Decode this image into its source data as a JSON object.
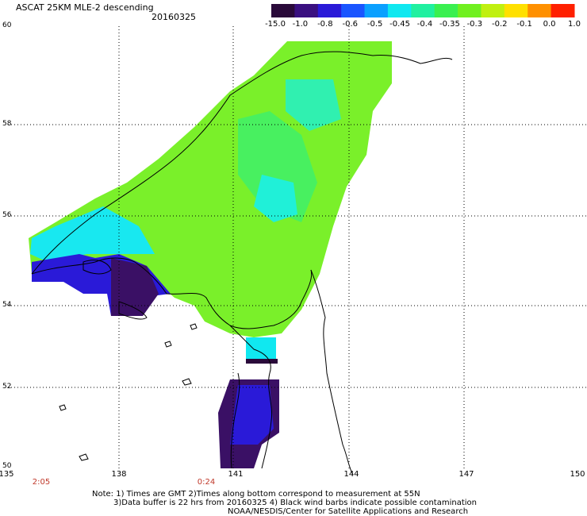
{
  "header": {
    "title": "ASCAT 25KM MLE-2 descending",
    "date": "20160325"
  },
  "colorbar": {
    "labels": [
      "-15.0",
      "-1.0",
      "-0.8",
      "-0.6",
      "-0.5",
      "-0.45",
      "-0.4",
      "-0.35",
      "-0.3",
      "-0.2",
      "-0.1",
      "0.0",
      "1.0"
    ],
    "colors": [
      "#2a0a3a",
      "#3a1080",
      "#2a1ad8",
      "#1a55ff",
      "#0aa0ff",
      "#10e8f0",
      "#20f0a0",
      "#3af050",
      "#70f020",
      "#c0f010",
      "#ffe000",
      "#ff9000",
      "#ff2000"
    ]
  },
  "map": {
    "lat_labels": [
      "60",
      "58",
      "56",
      "54",
      "52",
      "50"
    ],
    "lon_labels": [
      "135",
      "138",
      "141",
      "144",
      "147",
      "150"
    ],
    "time_labels": [
      "2:05",
      "0:24"
    ]
  },
  "notes": {
    "line1": "Note: 1) Times are GMT 2)Times along bottom correspond to measurement at 55N",
    "line2": "3)Data buffer is 22 hrs from 20160325 4) Black wind barbs indicate possible contamination",
    "line3": "NOAA/NESDIS/Center for Satellite Applications and Research"
  }
}
